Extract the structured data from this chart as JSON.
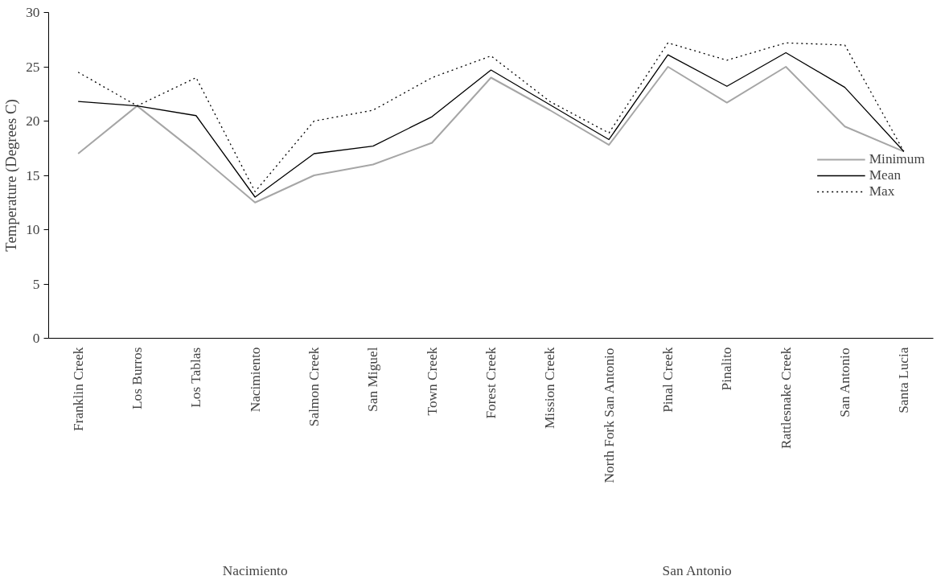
{
  "chart_data": {
    "type": "line",
    "ylabel": "Temperature (Degrees C)",
    "categories": [
      "Franklin Creek",
      "Los Burros",
      "Los Tablas",
      "Nacimiento",
      "Salmon Creek",
      "San Miguel",
      "Town Creek",
      "Forest Creek",
      "Mission Creek",
      "North Fork San Antonio",
      "Pinal Creek",
      "Pinalito",
      "Rattlesnake Creek",
      "San Antonio",
      "Santa Lucia"
    ],
    "series": [
      {
        "name": "Minimum",
        "color": "#a6a6a6",
        "line_style": "solid",
        "values": [
          17,
          21.4,
          17.1,
          12.5,
          15,
          16,
          18,
          24,
          21,
          17.8,
          25,
          21.7,
          25,
          19.5,
          17.2
        ]
      },
      {
        "name": "Mean",
        "color": "#000000",
        "line_style": "solid",
        "values": [
          21.8,
          21.4,
          20.5,
          13,
          17,
          17.7,
          20.4,
          24.7,
          21.5,
          18.3,
          26.1,
          23.2,
          26.3,
          23.1,
          17.2
        ]
      },
      {
        "name": "Max",
        "color": "#000000",
        "line_style": "dotted",
        "values": [
          24.5,
          21.4,
          24,
          13.5,
          20,
          21,
          24,
          26,
          21.8,
          18.9,
          27.2,
          25.6,
          27.2,
          27,
          17.2
        ]
      }
    ],
    "annotations": [
      "Nacimiento",
      "San Antonio"
    ],
    "ylim": [
      0,
      30
    ],
    "yticks": [
      0,
      5,
      10,
      15,
      20,
      25,
      30
    ],
    "grid": false,
    "legend": "right",
    "marker": "none"
  }
}
